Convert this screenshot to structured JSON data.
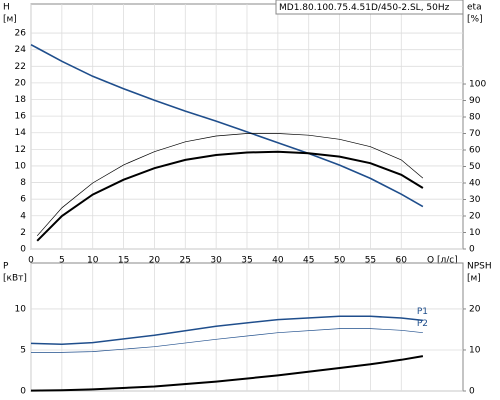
{
  "chart_data": [
    {
      "type": "line",
      "title": "MD1.80.100.75.4.51D/450-2.SL, 50Hz",
      "y_label_lines": [
        "H",
        "[м]"
      ],
      "y2_label_lines": [
        "eta",
        "[%]"
      ],
      "x_label": "Q [л/с]",
      "x": [
        0,
        1,
        5,
        10,
        15,
        20,
        25,
        30,
        35,
        40,
        45,
        50,
        55,
        60,
        63.5
      ],
      "xlim": [
        0,
        70
      ],
      "xticks": [
        0,
        5,
        10,
        15,
        20,
        25,
        30,
        35,
        40,
        45,
        50,
        55,
        60
      ],
      "ylim": [
        0,
        29.5
      ],
      "yticks": [
        0,
        2,
        4,
        6,
        8,
        10,
        12,
        14,
        16,
        18,
        20,
        22,
        24,
        26
      ],
      "y2lim": [
        0,
        148.5
      ],
      "y2ticks": [
        0,
        10,
        20,
        30,
        40,
        50,
        60,
        70,
        80,
        90,
        100
      ],
      "grid": true,
      "series": [
        {
          "color": "#1f4e8c",
          "width": 1.6,
          "values": [
            24.6,
            24.2,
            22.6,
            20.8,
            19.3,
            17.9,
            16.6,
            15.4,
            14.1,
            12.8,
            11.5,
            10.1,
            8.5,
            6.6,
            5.1
          ]
        },
        {
          "color": "#000000",
          "width": 0.7,
          "axis": "y2",
          "values": [
            null,
            8,
            25,
            40,
            51,
            59,
            65,
            68.5,
            70,
            70,
            69,
            66.5,
            62,
            54,
            43
          ]
        },
        {
          "color": "#000000",
          "width": 2,
          "axis": "y2",
          "values": [
            null,
            5,
            20,
            33,
            42,
            49,
            54,
            57,
            58.5,
            59,
            58,
            56,
            52,
            45,
            37
          ]
        }
      ]
    },
    {
      "type": "line",
      "y_label_lines": [
        "P",
        "[кВт]"
      ],
      "y2_label_lines": [
        "NPSH",
        "[м]"
      ],
      "x": [
        0,
        5,
        10,
        20,
        30,
        40,
        50,
        55,
        60,
        63.5
      ],
      "xlim": [
        0,
        70
      ],
      "xticks": [
        0,
        5,
        10,
        15,
        20,
        25,
        30,
        35,
        40,
        45,
        50,
        55,
        60
      ],
      "ylim": [
        0,
        15.6
      ],
      "yticks": [
        0,
        5,
        10
      ],
      "y2lim": [
        0,
        31.2
      ],
      "y2ticks": [
        0,
        10,
        20
      ],
      "grid": true,
      "series": [
        {
          "name": "P1",
          "color": "#1f4e8c",
          "width": 1.5,
          "values": [
            5.8,
            5.7,
            5.9,
            6.8,
            7.9,
            8.7,
            9.1,
            9.1,
            8.9,
            8.6
          ]
        },
        {
          "name": "P2",
          "color": "#1f4e8c",
          "width": 0.7,
          "values": [
            4.7,
            4.7,
            4.8,
            5.4,
            6.3,
            7.1,
            7.6,
            7.6,
            7.4,
            7.1
          ]
        },
        {
          "color": "#000000",
          "width": 2,
          "axis": "y2",
          "values": [
            0.1,
            0.2,
            0.4,
            1.1,
            2.3,
            3.8,
            5.6,
            6.5,
            7.6,
            8.5
          ]
        }
      ]
    }
  ]
}
